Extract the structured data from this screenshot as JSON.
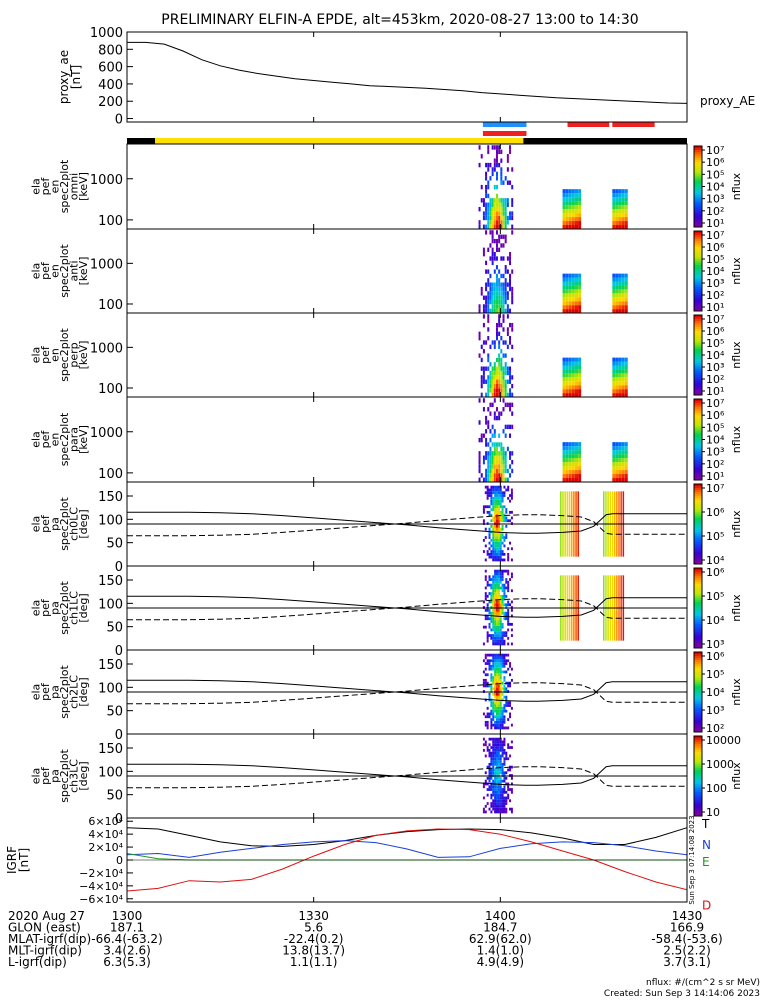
{
  "title": "PRELIMINARY ELFIN-A EPDE, alt=453km, 2020-08-27 13:00 to 14:30",
  "colors": {
    "axis": "#000000",
    "bar_dark": "#000000",
    "bar_yellow": "#ffe000",
    "bar_blue": "#1e90ff",
    "bar_red": "#ee2020",
    "igrf_x": "#000000",
    "igrf_y": "#1a3fd8",
    "igrf_z": "#1a9a1a",
    "igrf_d": "#dd1111"
  },
  "chart_data": {
    "type": "line",
    "time_ticks": [
      "1300",
      "1330",
      "1400",
      "1430"
    ],
    "time_tick_values": [
      0,
      30,
      60,
      90
    ],
    "time_range": [
      0,
      90
    ],
    "proxy_ae": {
      "ylabel": "proxy_ae\n[nT]",
      "series_label": "proxy_AE",
      "ylim": [
        -40,
        1000
      ],
      "yticks": [
        "1000",
        "800",
        "600",
        "400",
        "200",
        "0"
      ],
      "ytick_values": [
        1000,
        800,
        600,
        400,
        200,
        0
      ],
      "x": [
        0,
        3,
        6,
        9,
        12,
        15,
        18,
        21,
        24,
        27,
        30,
        33,
        36,
        39,
        42,
        45,
        48,
        51,
        54,
        57,
        60,
        63,
        66,
        69,
        72,
        75,
        78,
        81,
        84,
        87,
        90
      ],
      "values": [
        880,
        880,
        860,
        780,
        680,
        610,
        560,
        520,
        490,
        460,
        440,
        420,
        400,
        380,
        370,
        360,
        350,
        335,
        320,
        300,
        285,
        270,
        255,
        240,
        230,
        220,
        210,
        200,
        190,
        180,
        175
      ]
    },
    "status_bar": {
      "segments": [
        {
          "start": 0,
          "end": 4.5,
          "color": "bar_dark"
        },
        {
          "start": 4.5,
          "end": 63.7,
          "color": "bar_yellow"
        },
        {
          "start": 63.7,
          "end": 90,
          "color": "bar_dark"
        }
      ],
      "upper": [
        {
          "start": 57.2,
          "end": 64.2,
          "color": "bar_blue"
        },
        {
          "start": 70.8,
          "end": 77.5,
          "color": "bar_red"
        },
        {
          "start": 78.0,
          "end": 84.8,
          "color": "bar_red"
        }
      ],
      "lower": [
        {
          "start": 57.2,
          "end": 64.2,
          "color": "bar_red"
        }
      ]
    },
    "energy_panels": [
      {
        "ylabel": [
          "ela",
          "pef",
          "en",
          "spec2plot",
          "omni",
          "[keV]"
        ],
        "yticks": [
          "1000",
          "100"
        ],
        "ytick_values": [
          1000,
          100
        ],
        "ylim": [
          60,
          7000
        ],
        "cbar_ticks": [
          "10⁷",
          "10⁶",
          "10⁵",
          "10⁴",
          "10³",
          "10²",
          "10¹"
        ],
        "cbar_label": "nflux"
      },
      {
        "ylabel": [
          "ela",
          "pef",
          "en",
          "spec2plot",
          "anti",
          "[keV]"
        ],
        "yticks": [
          "1000",
          "100"
        ],
        "ytick_values": [
          1000,
          100
        ],
        "ylim": [
          60,
          7000
        ],
        "cbar_ticks": [
          "10⁷",
          "10⁶",
          "10⁵",
          "10⁴",
          "10³",
          "10²",
          "10¹"
        ],
        "cbar_label": "nflux"
      },
      {
        "ylabel": [
          "ela",
          "pef",
          "en",
          "spec2plot",
          "perp",
          "[keV]"
        ],
        "yticks": [
          "1000",
          "100"
        ],
        "ytick_values": [
          1000,
          100
        ],
        "ylim": [
          60,
          7000
        ],
        "cbar_ticks": [
          "10⁷",
          "10⁶",
          "10⁵",
          "10⁴",
          "10³",
          "10²",
          "10¹"
        ],
        "cbar_label": "nflux"
      },
      {
        "ylabel": [
          "ela",
          "pef",
          "en",
          "spec2plot",
          "para",
          "[keV]"
        ],
        "yticks": [
          "1000",
          "100"
        ],
        "ytick_values": [
          1000,
          100
        ],
        "ylim": [
          60,
          7000
        ],
        "cbar_ticks": [
          "10⁷",
          "10⁶",
          "10⁵",
          "10⁴",
          "10³",
          "10²",
          "10¹"
        ],
        "cbar_label": "nflux"
      }
    ],
    "pitch_panels": [
      {
        "ylabel": [
          "ela",
          "pef",
          "pa",
          "spec2plot",
          "ch0LC",
          "[deg]"
        ],
        "yticks": [
          "150",
          "100",
          "50",
          "0"
        ],
        "ytick_values": [
          150,
          100,
          50,
          0
        ],
        "ylim": [
          0,
          180
        ],
        "cbar_ticks": [
          "10⁷",
          "10⁶",
          "10⁵",
          "10⁴"
        ],
        "cbar_label": "nflux"
      },
      {
        "ylabel": [
          "ela",
          "pef",
          "pa",
          "spec2plot",
          "ch1LC",
          "[deg]"
        ],
        "yticks": [
          "150",
          "100",
          "50",
          "0"
        ],
        "ytick_values": [
          150,
          100,
          50,
          0
        ],
        "ylim": [
          0,
          180
        ],
        "cbar_ticks": [
          "10⁶",
          "10⁵",
          "10⁴",
          "10³"
        ],
        "cbar_label": "nflux"
      },
      {
        "ylabel": [
          "ela",
          "pef",
          "pa",
          "spec2plot",
          "ch2LC",
          "[deg]"
        ],
        "yticks": [
          "150",
          "100",
          "50",
          "0"
        ],
        "ytick_values": [
          150,
          100,
          50,
          0
        ],
        "ylim": [
          0,
          180
        ],
        "cbar_ticks": [
          "10⁶",
          "10⁵",
          "10⁴",
          "10³",
          "10²"
        ],
        "cbar_label": "nflux"
      },
      {
        "ylabel": [
          "ela",
          "pef",
          "pa",
          "spec2plot",
          "ch3LC",
          "[deg]"
        ],
        "yticks": [
          "150",
          "100",
          "50",
          "0"
        ],
        "ytick_values": [
          150,
          100,
          50,
          0
        ],
        "ylim": [
          0,
          180
        ],
        "cbar_ticks": [
          "10000",
          "1000",
          "100",
          "10"
        ],
        "cbar_label": "nflux"
      }
    ],
    "loss_cone": {
      "x": [
        0,
        5,
        10,
        15,
        20,
        25,
        30,
        35,
        40,
        45,
        50,
        55,
        58,
        60,
        62,
        64,
        66,
        70,
        73,
        75,
        77,
        78,
        80,
        85,
        90
      ],
      "lc": [
        115,
        115,
        115,
        114,
        112,
        108,
        103,
        98,
        93,
        88,
        82,
        77,
        74,
        72,
        71,
        70,
        70,
        72,
        75,
        85,
        110,
        112,
        112,
        112,
        112
      ],
      "alc": [
        65,
        65,
        65,
        66,
        68,
        72,
        77,
        82,
        87,
        92,
        98,
        103,
        106,
        108,
        109,
        110,
        110,
        108,
        105,
        95,
        70,
        68,
        68,
        68,
        68
      ],
      "ref": 90
    },
    "igrf": {
      "ylabel": "IGRF\n[nT]",
      "yticks": [
        "6×10⁴",
        "4×10⁴",
        "2×10⁴",
        "0",
        "−2×10⁴",
        "−4×10⁴",
        "−6×10⁴"
      ],
      "ytick_values": [
        60000,
        40000,
        20000,
        0,
        -20000,
        -40000,
        -60000
      ],
      "ylim": [
        -65000,
        65000
      ],
      "x": [
        0,
        5,
        10,
        15,
        20,
        25,
        30,
        35,
        40,
        45,
        50,
        55,
        60,
        65,
        70,
        75,
        80,
        85,
        90
      ],
      "series": [
        {
          "name": "T",
          "color": "igrf_x",
          "values": [
            50000,
            48000,
            38000,
            28000,
            22000,
            21000,
            24000,
            30000,
            38000,
            44000,
            47000,
            48000,
            47000,
            42000,
            34000,
            24000,
            24000,
            35000,
            50000
          ]
        },
        {
          "name": "N",
          "color": "igrf_y",
          "values": [
            8000,
            10000,
            4000,
            12000,
            18000,
            24000,
            28000,
            30000,
            27000,
            17000,
            4000,
            5000,
            18000,
            25000,
            28000,
            27000,
            22000,
            14000,
            8000
          ]
        },
        {
          "name": "E",
          "color": "igrf_z",
          "values": [
            10000,
            2000,
            0,
            0,
            0,
            0,
            0,
            0,
            0,
            0,
            0,
            0,
            0,
            0,
            0,
            0,
            0,
            0,
            0
          ]
        },
        {
          "name": "D",
          "color": "igrf_d",
          "values": [
            -48000,
            -44000,
            -32000,
            -34000,
            -30000,
            -14000,
            6000,
            24000,
            38000,
            45000,
            48000,
            47000,
            40000,
            28000,
            14000,
            0,
            -18000,
            -34000,
            -46000
          ]
        }
      ],
      "side_stamp": "Sun Sep  3 07:14:08 2023"
    },
    "orbit_table": {
      "rows": [
        {
          "label": "2020 Aug 27",
          "values": [
            "1300",
            "1330",
            "1400",
            "1430"
          ]
        },
        {
          "label": "GLON (east)",
          "values": [
            "187.1",
            "5.6",
            "184.7",
            "166.9"
          ]
        },
        {
          "label": "MLAT-igrf(dip)",
          "values": [
            "-66.4(-63.2)",
            "-22.4(0.2)",
            "62.9(62.0)",
            "-58.4(-53.6)"
          ]
        },
        {
          "label": "MLT-igrf(dip)",
          "values": [
            "3.4(2.6)",
            "13.8(13.7)",
            "1.4(1.0)",
            "2.5(2.2)"
          ]
        },
        {
          "label": "L-igrf(dip)",
          "values": [
            "6.3(5.3)",
            "1.1(1.1)",
            "4.9(4.9)",
            "3.7(3.1)"
          ]
        }
      ]
    },
    "footer": {
      "units": "nflux: #/(cm^2 s sr MeV)",
      "created": "Created: Sun Sep  3 14:14:06 2023"
    }
  }
}
